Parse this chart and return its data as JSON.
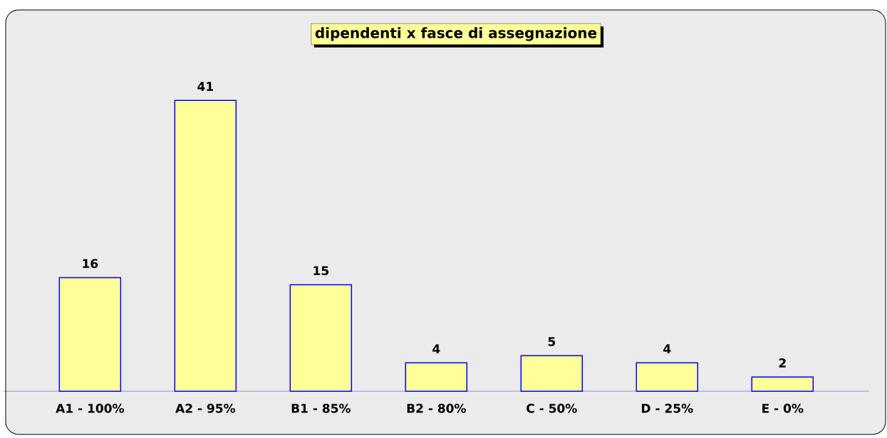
{
  "chart_data": {
    "type": "bar",
    "title": "dipendenti x fasce di assegnazione",
    "categories": [
      "A1 - 100%",
      "A2 - 95%",
      "B1 - 85%",
      "B2 - 80%",
      "C - 50%",
      "D - 25%",
      "E - 0%"
    ],
    "values": [
      16,
      41,
      15,
      4,
      5,
      4,
      2
    ],
    "color": "#ffff99",
    "tick_labels": "x",
    "data_labels": true
  }
}
